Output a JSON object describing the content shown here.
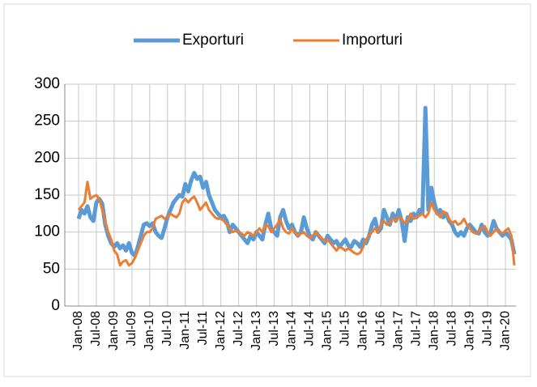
{
  "chart_data": {
    "type": "line",
    "categories": [
      "Jan-08",
      null,
      null,
      null,
      null,
      null,
      "Jul-08",
      null,
      null,
      null,
      null,
      null,
      "Jan-09",
      null,
      null,
      null,
      null,
      null,
      "Jul-09",
      null,
      null,
      null,
      null,
      null,
      "Jan-10",
      null,
      null,
      null,
      null,
      null,
      "Jul-10",
      null,
      null,
      null,
      null,
      null,
      "Jan-11",
      null,
      null,
      null,
      null,
      null,
      "Jul-11",
      null,
      null,
      null,
      null,
      null,
      "Jan-12",
      null,
      null,
      null,
      null,
      null,
      "Jul-12",
      null,
      null,
      null,
      null,
      null,
      "Jan-13",
      null,
      null,
      null,
      null,
      null,
      "Jul-13",
      null,
      null,
      null,
      null,
      null,
      "Jan-14",
      null,
      null,
      null,
      null,
      null,
      "Jul-14",
      null,
      null,
      null,
      null,
      null,
      "Jan-15",
      null,
      null,
      null,
      null,
      null,
      "Jul-15",
      null,
      null,
      null,
      null,
      null,
      "Jan-16",
      null,
      null,
      null,
      null,
      null,
      "Jul-16",
      null,
      null,
      null,
      null,
      null,
      "Jan-17",
      null,
      null,
      null,
      null,
      null,
      "Jul-17",
      null,
      null,
      null,
      null,
      null,
      "Jan-18",
      null,
      null,
      null,
      null,
      null,
      "Jul-18",
      null,
      null,
      null,
      null,
      null,
      "Jan-19",
      null,
      null,
      null,
      null,
      null,
      "Jul-19",
      null,
      null,
      null,
      null,
      null,
      "Jan-20",
      null,
      null,
      null
    ],
    "series": [
      {
        "name": "Exporturi",
        "color": "#5b9bd5",
        "values": [
          118,
          130,
          125,
          135,
          120,
          115,
          140,
          145,
          138,
          110,
          95,
          85,
          80,
          85,
          78,
          82,
          75,
          85,
          72,
          68,
          80,
          95,
          110,
          112,
          108,
          112,
          100,
          95,
          92,
          105,
          120,
          130,
          140,
          145,
          150,
          148,
          165,
          155,
          170,
          180,
          172,
          175,
          160,
          168,
          150,
          140,
          130,
          125,
          120,
          122,
          115,
          100,
          110,
          105,
          100,
          95,
          90,
          85,
          95,
          90,
          100,
          95,
          90,
          110,
          125,
          105,
          100,
          95,
          120,
          130,
          115,
          105,
          110,
          100,
          95,
          100,
          120,
          105,
          95,
          90,
          100,
          95,
          90,
          85,
          95,
          90,
          85,
          88,
          80,
          85,
          90,
          82,
          80,
          88,
          85,
          80,
          90,
          85,
          95,
          110,
          118,
          100,
          105,
          130,
          120,
          110,
          125,
          115,
          130,
          115,
          88,
          120,
          115,
          125,
          120,
          130,
          125,
          268,
          130,
          160,
          140,
          125,
          130,
          120,
          125,
          115,
          110,
          100,
          95,
          100,
          95,
          105,
          110,
          105,
          100,
          98,
          110,
          100,
          95,
          100,
          115,
          105,
          100,
          95,
          100,
          95,
          90,
          70
        ]
      },
      {
        "name": "Importuri",
        "color": "#ed7d31",
        "values": [
          130,
          135,
          140,
          168,
          145,
          148,
          150,
          145,
          130,
          115,
          100,
          90,
          75,
          70,
          55,
          60,
          62,
          55,
          58,
          65,
          75,
          85,
          95,
          100,
          100,
          105,
          118,
          120,
          122,
          118,
          120,
          125,
          122,
          120,
          125,
          140,
          145,
          140,
          145,
          148,
          140,
          130,
          135,
          140,
          130,
          125,
          120,
          118,
          118,
          115,
          110,
          105,
          100,
          102,
          100,
          98,
          95,
          100,
          98,
          95,
          100,
          105,
          100,
          110,
          108,
          100,
          105,
          110,
          118,
          105,
          100,
          98,
          105,
          100,
          95,
          98,
          100,
          95,
          92,
          95,
          100,
          95,
          92,
          88,
          90,
          85,
          80,
          75,
          80,
          78,
          75,
          78,
          75,
          72,
          70,
          72,
          80,
          90,
          95,
          100,
          105,
          100,
          110,
          115,
          110,
          112,
          118,
          115,
          120,
          118,
          112,
          115,
          125,
          118,
          120,
          122,
          125,
          120,
          125,
          140,
          130,
          125,
          120,
          128,
          125,
          118,
          112,
          115,
          110,
          112,
          118,
          110,
          105,
          100,
          98,
          100,
          105,
          108,
          100,
          95,
          100,
          105,
          100,
          98,
          102,
          105,
          95,
          55
        ]
      }
    ],
    "ylim": [
      0,
      300
    ],
    "yticks": [
      0,
      50,
      100,
      150,
      200,
      250,
      300
    ],
    "grid": true,
    "legend": "top"
  }
}
